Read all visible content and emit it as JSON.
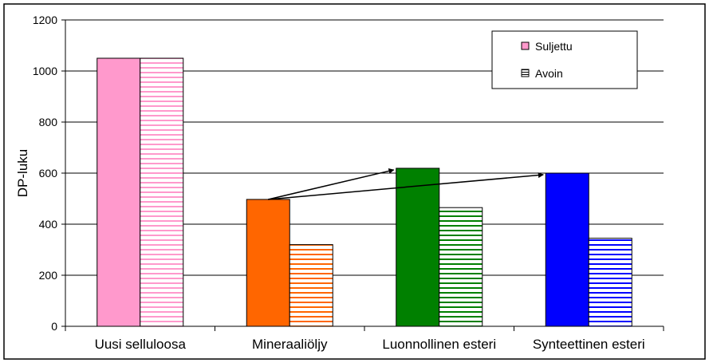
{
  "chart_data": {
    "type": "bar",
    "categories": [
      "Uusi selluloosa",
      "Mineraaliöljy",
      "Luonnollinen esteri",
      "Synteettinen esteri"
    ],
    "category_colors": [
      "#ff99cc",
      "#ff6600",
      "#008000",
      "#0000ff"
    ],
    "series": [
      {
        "name": "Suljettu",
        "values": [
          1050,
          497,
          619,
          600
        ],
        "fill": "solid"
      },
      {
        "name": "Avoin",
        "values": [
          1050,
          320,
          465,
          345
        ],
        "fill": "horizontal-stripes"
      }
    ],
    "ylabel": "DP-luku",
    "xlabel": "",
    "title": "",
    "ylim": [
      0,
      1200
    ],
    "yticks": [
      0,
      200,
      400,
      600,
      800,
      1000,
      1200
    ],
    "grid": true,
    "legend": "top-right",
    "annotations": [
      {
        "type": "arrow",
        "from": {
          "category": "Mineraaliöljy",
          "series": "Suljettu"
        },
        "to": {
          "category": "Luonnollinen esteri",
          "series": "Suljettu"
        }
      },
      {
        "type": "arrow",
        "from": {
          "category": "Mineraaliöljy",
          "series": "Suljettu"
        },
        "to": {
          "category": "Synteettinen esteri",
          "series": "Suljettu"
        }
      }
    ]
  }
}
